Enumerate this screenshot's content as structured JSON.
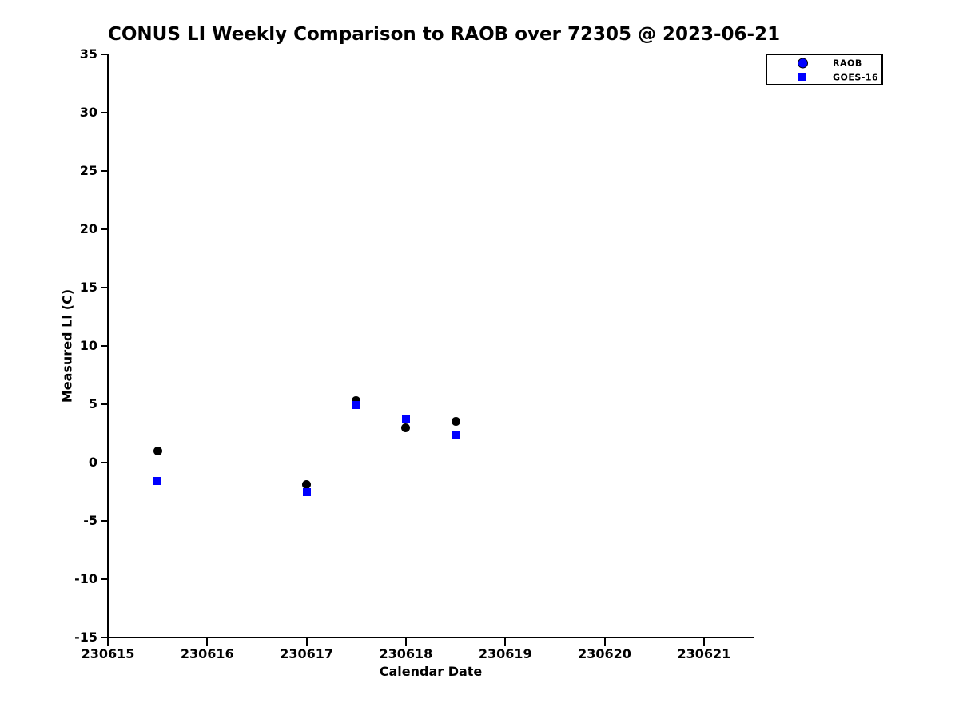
{
  "title": "CONUS LI Weekly Comparison to RAOB over 72305 @ 2023-06-21",
  "colors": {
    "background": "#ffffff",
    "axis": "#000000",
    "text": "#000000",
    "raob_plot_marker": "#000000",
    "goes16_plot_marker": "#0000ff",
    "legend_raob_fill": "#0000ff",
    "legend_goes16_fill": "#0000ff"
  },
  "chart_data": {
    "type": "scatter",
    "title": "CONUS LI Weekly Comparison to RAOB over 72305 @ 2023-06-21",
    "xlabel": "Calendar Date",
    "ylabel": "Measured LI (C)",
    "xlim": [
      230615,
      230621.5
    ],
    "ylim": [
      -15,
      35
    ],
    "xticks": [
      230615,
      230616,
      230617,
      230618,
      230619,
      230620,
      230621
    ],
    "yticks": [
      -15,
      -10,
      -5,
      0,
      5,
      10,
      15,
      20,
      25,
      30,
      35
    ],
    "grid": false,
    "legend_position": "upper right",
    "series": [
      {
        "name": "RAOB",
        "marker": "circle",
        "color": "#000000",
        "points": [
          [
            230615.5,
            1.0
          ],
          [
            230617.0,
            -1.9
          ],
          [
            230617.5,
            5.3
          ],
          [
            230618.0,
            3.0
          ],
          [
            230618.5,
            3.5
          ]
        ]
      },
      {
        "name": "GOES-16",
        "marker": "square",
        "color": "#0000ff",
        "points": [
          [
            230615.5,
            -1.6
          ],
          [
            230617.0,
            -2.5
          ],
          [
            230617.5,
            4.9
          ],
          [
            230618.0,
            3.7
          ],
          [
            230618.5,
            2.3
          ]
        ]
      }
    ]
  },
  "legend": {
    "items": [
      {
        "label": "RAOB",
        "marker": "circle",
        "fill": "#0000ff"
      },
      {
        "label": "GOES-16",
        "marker": "square",
        "fill": "#0000ff"
      }
    ]
  }
}
